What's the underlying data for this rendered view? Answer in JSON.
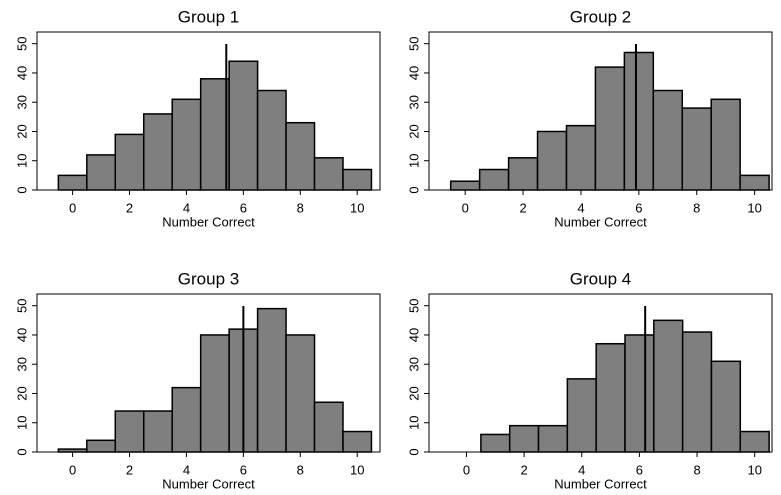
{
  "chart_data": [
    {
      "type": "histogram",
      "title": "Group 1",
      "xlabel": "Number Correct",
      "bins": [
        -0.5,
        0.5,
        1.5,
        2.5,
        3.5,
        4.5,
        5.5,
        6.5,
        7.5,
        8.5,
        9.5,
        10.5
      ],
      "counts": [
        5,
        12,
        19,
        26,
        31,
        38,
        44,
        34,
        23,
        11,
        7
      ],
      "vline": 5.4,
      "color": "#7f7f7f",
      "xlim": [
        -1.25,
        10.8
      ],
      "ylim": [
        0,
        54
      ],
      "xticks": [
        0,
        2,
        4,
        6,
        8,
        10
      ],
      "yticks": [
        0,
        10,
        20,
        30,
        40,
        50
      ]
    },
    {
      "type": "histogram",
      "title": "Group 2",
      "xlabel": "Number Correct",
      "bins": [
        -0.5,
        0.5,
        1.5,
        2.5,
        3.5,
        4.5,
        5.5,
        6.5,
        7.5,
        8.5,
        9.5,
        10.5
      ],
      "counts": [
        3,
        7,
        11,
        20,
        22,
        42,
        47,
        34,
        28,
        31,
        5
      ],
      "vline": 5.9,
      "color": "#7f7f7f",
      "xlim": [
        -1.25,
        10.6
      ],
      "ylim": [
        0,
        54
      ],
      "xticks": [
        0,
        2,
        4,
        6,
        8,
        10
      ],
      "yticks": [
        0,
        10,
        20,
        30,
        40,
        50
      ]
    },
    {
      "type": "histogram",
      "title": "Group 3",
      "xlabel": "Number Correct",
      "bins": [
        -0.5,
        0.5,
        1.5,
        2.5,
        3.5,
        4.5,
        5.5,
        6.5,
        7.5,
        8.5,
        9.5,
        10.5
      ],
      "counts": [
        1,
        4,
        14,
        14,
        22,
        40,
        42,
        49,
        40,
        17,
        7
      ],
      "vline": 6.0,
      "color": "#7f7f7f",
      "xlim": [
        -1.25,
        10.8
      ],
      "ylim": [
        0,
        54
      ],
      "xticks": [
        0,
        2,
        4,
        6,
        8,
        10
      ],
      "yticks": [
        0,
        10,
        20,
        30,
        40,
        50
      ]
    },
    {
      "type": "histogram",
      "title": "Group 4",
      "xlabel": "Number Correct",
      "bins": [
        0.5,
        1.5,
        2.5,
        3.5,
        4.5,
        5.5,
        6.5,
        7.5,
        8.5,
        9.5,
        10.5
      ],
      "counts": [
        6,
        9,
        9,
        25,
        37,
        40,
        45,
        41,
        31,
        7
      ],
      "vline": 6.2,
      "color": "#7f7f7f",
      "xlim": [
        -1.3,
        10.6
      ],
      "ylim": [
        0,
        54
      ],
      "xticks": [
        0,
        2,
        4,
        6,
        8,
        10
      ],
      "yticks": [
        0,
        10,
        20,
        30,
        40,
        50
      ]
    }
  ]
}
